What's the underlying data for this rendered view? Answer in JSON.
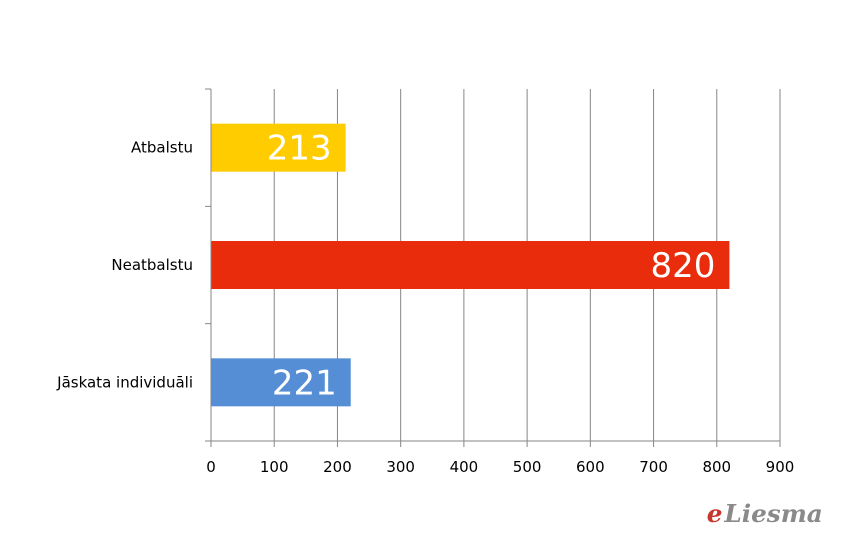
{
  "chart_data": {
    "type": "bar",
    "orientation": "horizontal",
    "categories": [
      "Atbalstu",
      "Neatbalstu",
      "Jāskata individuāli"
    ],
    "values": [
      213,
      820,
      221
    ],
    "colors": [
      "#ffcc00",
      "#e82c0c",
      "#558ed5"
    ],
    "data_labels": [
      "213",
      "820",
      "221"
    ],
    "xlim": [
      0,
      900
    ],
    "x_ticks": [
      "0",
      "100",
      "200",
      "300",
      "400",
      "500",
      "600",
      "700",
      "800",
      "900"
    ],
    "grid": "vertical",
    "gridline_color": "#868686",
    "title": "",
    "xlabel": "",
    "ylabel": ""
  },
  "watermark": {
    "prefix": "e",
    "text": "Liesma"
  }
}
